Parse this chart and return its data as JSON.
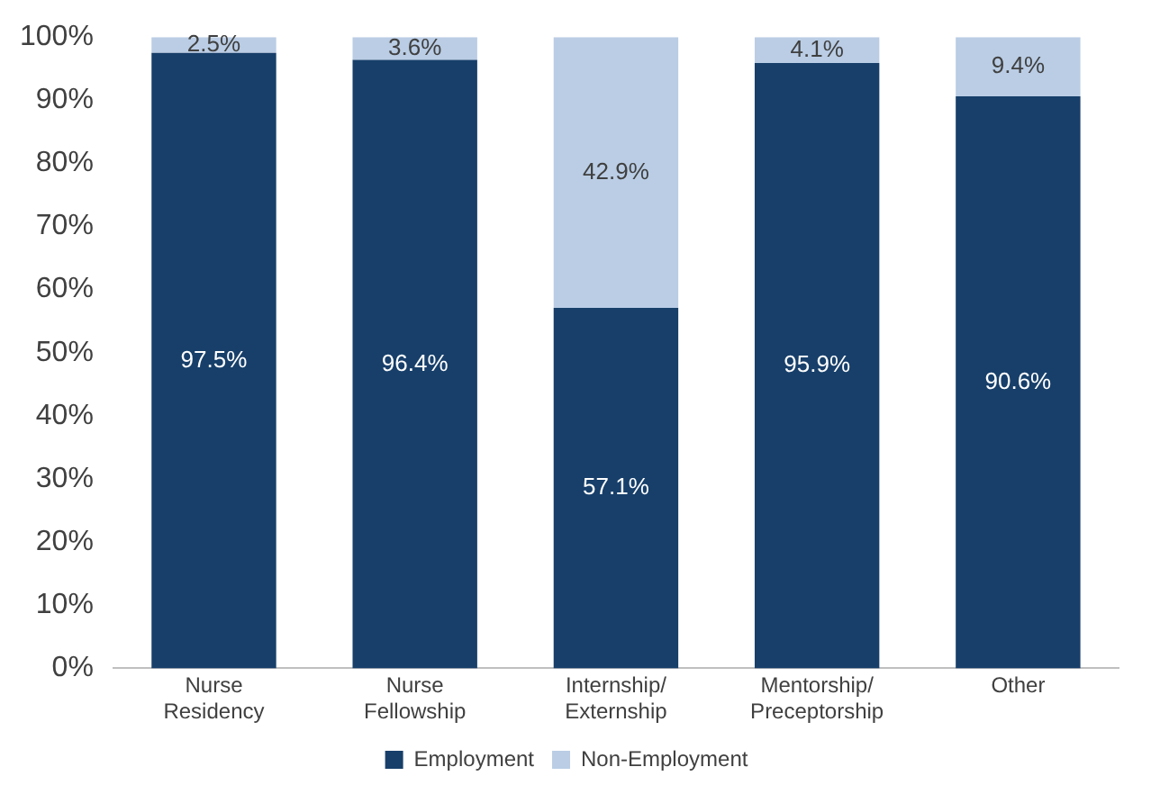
{
  "chart_data": {
    "type": "bar",
    "stacked": true,
    "categories": [
      "Nurse Residency",
      "Nurse Fellowship",
      "Internship/ Externship",
      "Mentorship/ Preceptorship",
      "Other"
    ],
    "series": [
      {
        "name": "Employment",
        "color": "#173f6a",
        "values": [
          97.5,
          96.4,
          57.1,
          95.9,
          90.6
        ],
        "value_labels": [
          "97.5%",
          "96.4%",
          "57.1%",
          "95.9%",
          "90.6%"
        ]
      },
      {
        "name": "Non-Employment",
        "color": "#bacde5",
        "values": [
          2.5,
          3.6,
          42.9,
          4.1,
          9.4
        ],
        "value_labels": [
          "2.5%",
          "3.6%",
          "42.9%",
          "4.1%",
          "9.4%"
        ]
      }
    ],
    "ylim": [
      0,
      100
    ],
    "yticks": [
      {
        "value": 0,
        "label": "0%"
      },
      {
        "value": 10,
        "label": "10%"
      },
      {
        "value": 20,
        "label": "20%"
      },
      {
        "value": 30,
        "label": "30%"
      },
      {
        "value": 40,
        "label": "40%"
      },
      {
        "value": 50,
        "label": "50%"
      },
      {
        "value": 60,
        "label": "60%"
      },
      {
        "value": 70,
        "label": "70%"
      },
      {
        "value": 80,
        "label": "80%"
      },
      {
        "value": 90,
        "label": "90%"
      },
      {
        "value": 100,
        "label": "100%"
      }
    ],
    "grid": false,
    "legend": "bottom"
  }
}
